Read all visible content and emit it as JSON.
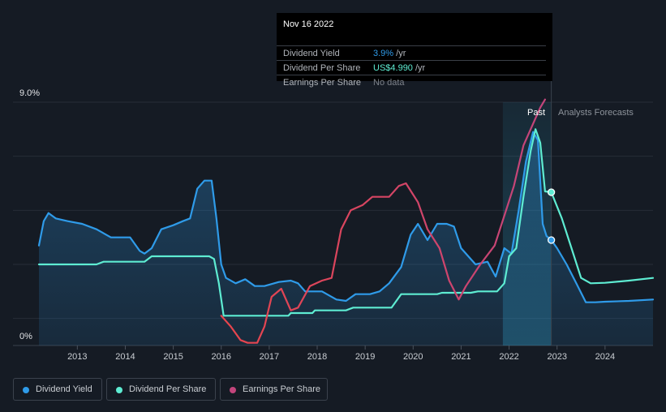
{
  "tooltip": {
    "date": "Nov 16 2022",
    "rows": [
      {
        "label": "Dividend Yield",
        "value": "3.9%",
        "unit": " /yr",
        "color": "#2f9be9"
      },
      {
        "label": "Dividend Per Share",
        "value": "US$4.990",
        "unit": " /yr",
        "color": "#5eecd2"
      },
      {
        "label": "Earnings Per Share",
        "value": "No data",
        "unit": "",
        "color": "#7d828a"
      }
    ]
  },
  "labels": {
    "past": "Past",
    "forecast": "Analysts Forecasts"
  },
  "legend": [
    {
      "label": "Dividend Yield",
      "color": "#2f9be9"
    },
    {
      "label": "Dividend Per Share",
      "color": "#5eecd2"
    },
    {
      "label": "Earnings Per Share",
      "color": "#c2457c"
    }
  ],
  "chart_data": {
    "type": "line",
    "title": "",
    "xlabel": "",
    "ylabel": "",
    "y_tick_labels": [
      "9.0%",
      "0%"
    ],
    "ylim": [
      0,
      9
    ],
    "xlim": [
      2012.2,
      2025.0
    ],
    "x_ticks": [
      2013,
      2014,
      2015,
      2016,
      2017,
      2018,
      2019,
      2020,
      2021,
      2022,
      2023,
      2024
    ],
    "grid": true,
    "cursor_date": 2022.88,
    "past_region_start": 2021.87,
    "series": [
      {
        "name": "Dividend Yield",
        "color": "#2f9be9",
        "fill": true,
        "points": [
          [
            2012.2,
            3.7
          ],
          [
            2012.3,
            4.6
          ],
          [
            2012.4,
            4.9
          ],
          [
            2012.55,
            4.7
          ],
          [
            2012.8,
            4.6
          ],
          [
            2013.1,
            4.5
          ],
          [
            2013.4,
            4.3
          ],
          [
            2013.7,
            4.0
          ],
          [
            2013.95,
            4.0
          ],
          [
            2014.1,
            4.0
          ],
          [
            2014.3,
            3.5
          ],
          [
            2014.4,
            3.4
          ],
          [
            2014.55,
            3.6
          ],
          [
            2014.75,
            4.3
          ],
          [
            2015.0,
            4.45
          ],
          [
            2015.2,
            4.6
          ],
          [
            2015.35,
            4.7
          ],
          [
            2015.5,
            5.8
          ],
          [
            2015.65,
            6.1
          ],
          [
            2015.8,
            6.1
          ],
          [
            2015.9,
            4.7
          ],
          [
            2016.0,
            3.0
          ],
          [
            2016.1,
            2.5
          ],
          [
            2016.3,
            2.3
          ],
          [
            2016.5,
            2.45
          ],
          [
            2016.7,
            2.2
          ],
          [
            2016.9,
            2.2
          ],
          [
            2017.2,
            2.35
          ],
          [
            2017.45,
            2.4
          ],
          [
            2017.6,
            2.3
          ],
          [
            2017.75,
            2.0
          ],
          [
            2018.1,
            2.0
          ],
          [
            2018.4,
            1.7
          ],
          [
            2018.6,
            1.65
          ],
          [
            2018.8,
            1.9
          ],
          [
            2019.1,
            1.9
          ],
          [
            2019.3,
            2.0
          ],
          [
            2019.5,
            2.3
          ],
          [
            2019.75,
            2.9
          ],
          [
            2019.95,
            4.1
          ],
          [
            2020.1,
            4.5
          ],
          [
            2020.3,
            3.9
          ],
          [
            2020.5,
            4.5
          ],
          [
            2020.7,
            4.5
          ],
          [
            2020.85,
            4.4
          ],
          [
            2021.0,
            3.6
          ],
          [
            2021.15,
            3.3
          ],
          [
            2021.3,
            3.0
          ],
          [
            2021.55,
            3.1
          ],
          [
            2021.72,
            2.55
          ],
          [
            2021.9,
            3.6
          ],
          [
            2022.05,
            3.4
          ],
          [
            2022.2,
            5.0
          ],
          [
            2022.35,
            6.8
          ],
          [
            2022.5,
            7.9
          ],
          [
            2022.6,
            7.6
          ],
          [
            2022.7,
            4.5
          ],
          [
            2022.78,
            4.05
          ],
          [
            2022.88,
            3.9
          ],
          [
            2023.0,
            3.6
          ],
          [
            2023.2,
            3.0
          ],
          [
            2023.4,
            2.3
          ],
          [
            2023.6,
            1.6
          ],
          [
            2023.8,
            1.6
          ],
          [
            2024.0,
            1.62
          ],
          [
            2024.5,
            1.65
          ],
          [
            2025.0,
            1.7
          ]
        ]
      },
      {
        "name": "Dividend Per Share",
        "color": "#5eecd2",
        "fill": false,
        "points": [
          [
            2012.2,
            3.0
          ],
          [
            2013.4,
            3.0
          ],
          [
            2013.55,
            3.1
          ],
          [
            2014.4,
            3.1
          ],
          [
            2014.55,
            3.3
          ],
          [
            2015.75,
            3.3
          ],
          [
            2015.85,
            3.2
          ],
          [
            2015.95,
            2.3
          ],
          [
            2016.05,
            1.1
          ],
          [
            2017.4,
            1.1
          ],
          [
            2017.45,
            1.2
          ],
          [
            2017.9,
            1.2
          ],
          [
            2017.95,
            1.3
          ],
          [
            2018.6,
            1.3
          ],
          [
            2018.75,
            1.4
          ],
          [
            2019.55,
            1.4
          ],
          [
            2019.75,
            1.9
          ],
          [
            2020.5,
            1.9
          ],
          [
            2020.6,
            1.95
          ],
          [
            2021.2,
            1.95
          ],
          [
            2021.35,
            2.0
          ],
          [
            2021.75,
            2.0
          ],
          [
            2021.9,
            2.3
          ],
          [
            2022.0,
            3.3
          ],
          [
            2022.15,
            3.6
          ],
          [
            2022.3,
            5.5
          ],
          [
            2022.45,
            7.2
          ],
          [
            2022.55,
            8.0
          ],
          [
            2022.65,
            7.5
          ],
          [
            2022.75,
            5.7
          ],
          [
            2022.88,
            5.67
          ],
          [
            2023.1,
            4.7
          ],
          [
            2023.3,
            3.6
          ],
          [
            2023.5,
            2.5
          ],
          [
            2023.7,
            2.3
          ],
          [
            2024.0,
            2.32
          ],
          [
            2024.5,
            2.4
          ],
          [
            2025.0,
            2.5
          ]
        ]
      },
      {
        "name": "Earnings Per Share",
        "color": "#c2457c",
        "gradient_from": "#e8454c",
        "fill": false,
        "points": [
          [
            2016.0,
            1.1
          ],
          [
            2016.2,
            0.7
          ],
          [
            2016.4,
            0.2
          ],
          [
            2016.55,
            0.1
          ],
          [
            2016.75,
            0.1
          ],
          [
            2016.9,
            0.7
          ],
          [
            2017.05,
            1.8
          ],
          [
            2017.25,
            2.1
          ],
          [
            2017.45,
            1.3
          ],
          [
            2017.6,
            1.4
          ],
          [
            2017.85,
            2.2
          ],
          [
            2018.1,
            2.4
          ],
          [
            2018.3,
            2.5
          ],
          [
            2018.5,
            4.3
          ],
          [
            2018.7,
            5.0
          ],
          [
            2018.95,
            5.2
          ],
          [
            2019.15,
            5.5
          ],
          [
            2019.5,
            5.5
          ],
          [
            2019.7,
            5.9
          ],
          [
            2019.85,
            6.0
          ],
          [
            2020.1,
            5.3
          ],
          [
            2020.3,
            4.3
          ],
          [
            2020.55,
            3.6
          ],
          [
            2020.75,
            2.4
          ],
          [
            2020.95,
            1.7
          ],
          [
            2021.1,
            2.2
          ],
          [
            2021.4,
            3.0
          ],
          [
            2021.7,
            3.7
          ],
          [
            2021.9,
            4.8
          ],
          [
            2022.1,
            5.9
          ],
          [
            2022.3,
            7.4
          ],
          [
            2022.5,
            8.2
          ],
          [
            2022.65,
            8.8
          ],
          [
            2022.75,
            9.1
          ]
        ]
      }
    ]
  }
}
